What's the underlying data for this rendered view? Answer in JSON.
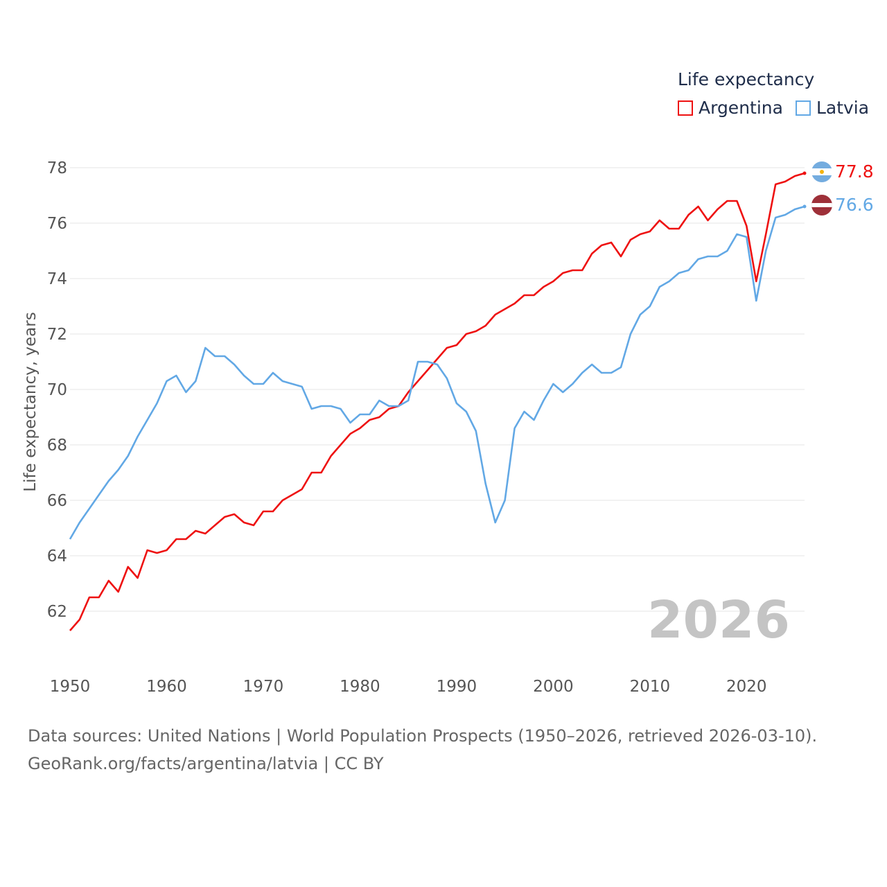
{
  "legend": {
    "title": "Life expectancy",
    "items": [
      {
        "label": "Argentina",
        "color": "#ee1111"
      },
      {
        "label": "Latvia",
        "color": "#62a8e5"
      }
    ]
  },
  "year_watermark": "2026",
  "footer": {
    "line1": "Data sources: United Nations | World Population Prospects (1950–2026, retrieved 2026-03-10).",
    "line2": "GeoRank.org/facts/argentina/latvia | CC BY"
  },
  "chart_data": {
    "type": "line",
    "title": "Life expectancy",
    "xlabel": "",
    "ylabel": "Life expectancy, years",
    "xlim": [
      1950,
      2026
    ],
    "ylim": [
      60.6,
      78.6
    ],
    "xticks": [
      1950,
      1960,
      1970,
      1980,
      1990,
      2000,
      2010,
      2020
    ],
    "yticks": [
      62,
      64,
      66,
      68,
      70,
      72,
      74,
      76,
      78
    ],
    "grid": true,
    "legend_position": "top-right",
    "series": [
      {
        "name": "Argentina",
        "color": "#ee1111",
        "end_label": "77.8",
        "x": [
          1950,
          1951,
          1952,
          1953,
          1954,
          1955,
          1956,
          1957,
          1958,
          1959,
          1960,
          1961,
          1962,
          1963,
          1964,
          1965,
          1966,
          1967,
          1968,
          1969,
          1970,
          1971,
          1972,
          1973,
          1974,
          1975,
          1976,
          1977,
          1978,
          1979,
          1980,
          1981,
          1982,
          1983,
          1984,
          1985,
          1986,
          1987,
          1988,
          1989,
          1990,
          1991,
          1992,
          1993,
          1994,
          1995,
          1996,
          1997,
          1998,
          1999,
          2000,
          2001,
          2002,
          2003,
          2004,
          2005,
          2006,
          2007,
          2008,
          2009,
          2010,
          2011,
          2012,
          2013,
          2014,
          2015,
          2016,
          2017,
          2018,
          2019,
          2020,
          2021,
          2022,
          2023,
          2024,
          2025,
          2026
        ],
        "values": [
          61.3,
          61.7,
          62.5,
          62.5,
          63.1,
          62.7,
          63.6,
          63.2,
          64.2,
          64.1,
          64.2,
          64.6,
          64.6,
          64.9,
          64.8,
          65.1,
          65.4,
          65.5,
          65.2,
          65.1,
          65.6,
          65.6,
          66.0,
          66.2,
          66.4,
          67.0,
          67.0,
          67.6,
          68.0,
          68.4,
          68.6,
          68.9,
          69.0,
          69.3,
          69.4,
          69.9,
          70.3,
          70.7,
          71.1,
          71.5,
          71.6,
          72.0,
          72.1,
          72.3,
          72.7,
          72.9,
          73.1,
          73.4,
          73.4,
          73.7,
          73.9,
          74.2,
          74.3,
          74.3,
          74.9,
          75.2,
          75.3,
          74.8,
          75.4,
          75.6,
          75.7,
          76.1,
          75.8,
          75.8,
          76.3,
          76.6,
          76.1,
          76.5,
          76.8,
          76.8,
          75.9,
          73.9,
          75.6,
          77.4,
          77.5,
          77.7,
          77.8
        ]
      },
      {
        "name": "Latvia",
        "color": "#62a8e5",
        "end_label": "76.6",
        "x": [
          1950,
          1951,
          1952,
          1953,
          1954,
          1955,
          1956,
          1957,
          1958,
          1959,
          1960,
          1961,
          1962,
          1963,
          1964,
          1965,
          1966,
          1967,
          1968,
          1969,
          1970,
          1971,
          1972,
          1973,
          1974,
          1975,
          1976,
          1977,
          1978,
          1979,
          1980,
          1981,
          1982,
          1983,
          1984,
          1985,
          1986,
          1987,
          1988,
          1989,
          1990,
          1991,
          1992,
          1993,
          1994,
          1995,
          1996,
          1997,
          1998,
          1999,
          2000,
          2001,
          2002,
          2003,
          2004,
          2005,
          2006,
          2007,
          2008,
          2009,
          2010,
          2011,
          2012,
          2013,
          2014,
          2015,
          2016,
          2017,
          2018,
          2019,
          2020,
          2021,
          2022,
          2023,
          2024,
          2025,
          2026
        ],
        "values": [
          64.6,
          65.2,
          65.7,
          66.2,
          66.7,
          67.1,
          67.6,
          68.3,
          68.9,
          69.5,
          70.3,
          70.5,
          69.9,
          70.3,
          71.5,
          71.2,
          71.2,
          70.9,
          70.5,
          70.2,
          70.2,
          70.6,
          70.3,
          70.2,
          70.1,
          69.3,
          69.4,
          69.4,
          69.3,
          68.8,
          69.1,
          69.1,
          69.6,
          69.4,
          69.4,
          69.6,
          71.0,
          71.0,
          70.9,
          70.4,
          69.5,
          69.2,
          68.5,
          66.6,
          65.2,
          66.0,
          68.6,
          69.2,
          68.9,
          69.6,
          70.2,
          69.9,
          70.2,
          70.6,
          70.9,
          70.6,
          70.6,
          70.8,
          72.0,
          72.7,
          73.0,
          73.7,
          73.9,
          74.2,
          74.3,
          74.7,
          74.8,
          74.8,
          75.0,
          75.6,
          75.5,
          73.2,
          75.0,
          76.2,
          76.3,
          76.5,
          76.6
        ]
      }
    ]
  }
}
